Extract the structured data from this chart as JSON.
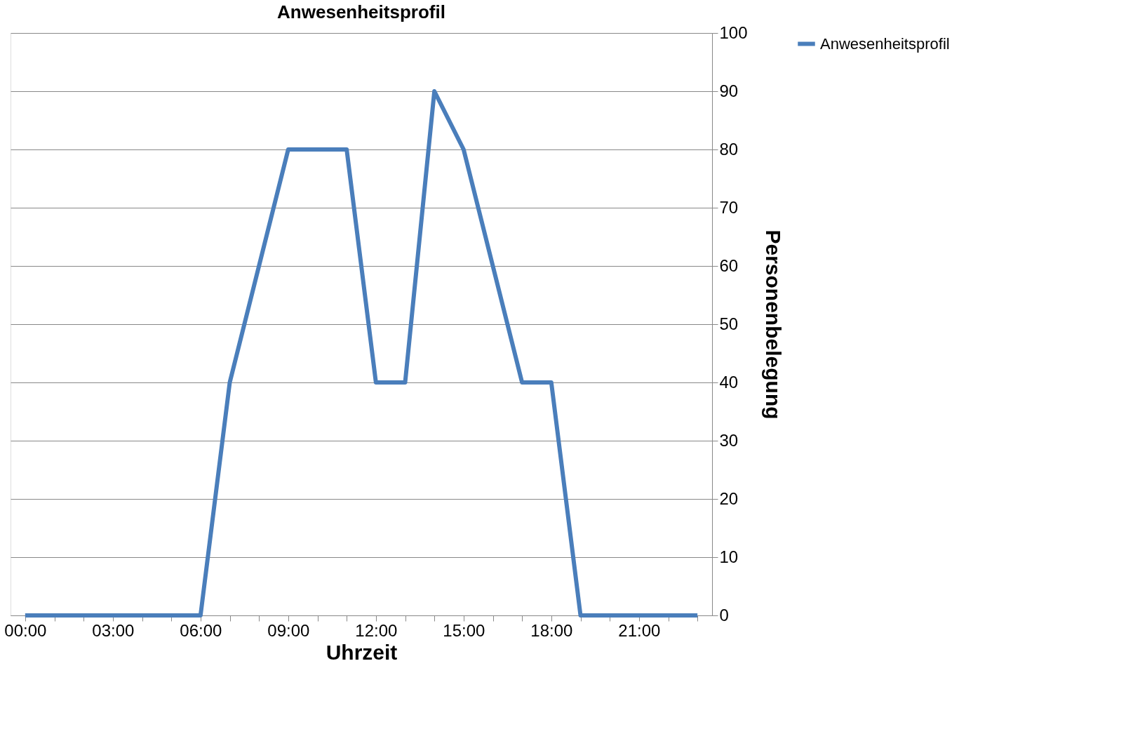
{
  "chart_data": {
    "type": "line",
    "title": "Anwesenheitsprofil",
    "xlabel": "Uhrzeit",
    "ylabel": "Personenbelegung",
    "categories": [
      "00:00",
      null,
      null,
      "03:00",
      null,
      null,
      "06:00",
      null,
      null,
      "09:00",
      null,
      null,
      "12:00",
      null,
      null,
      "15:00",
      null,
      null,
      "18:00",
      null,
      null,
      "21:00",
      null,
      null
    ],
    "series": [
      {
        "name": "Anwesenheitsprofil",
        "color": "#4a7ebb",
        "values": [
          0,
          0,
          0,
          0,
          0,
          0,
          0,
          40,
          60,
          80,
          80,
          80,
          40,
          40,
          90,
          80,
          60,
          40,
          40,
          0,
          0,
          0,
          0,
          0
        ]
      }
    ],
    "ylim": [
      0,
      100
    ],
    "yticks": [
      0,
      10,
      20,
      30,
      40,
      50,
      60,
      70,
      80,
      90,
      100
    ],
    "grid": "y",
    "legend": "right",
    "marker": "none",
    "line_style": "solid"
  }
}
